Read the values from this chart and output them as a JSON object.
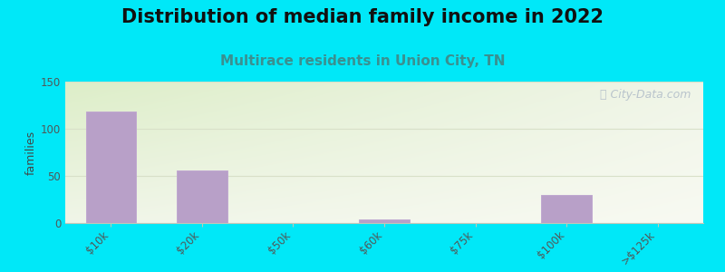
{
  "title": "Distribution of median family income in 2022",
  "subtitle": "Multirace residents in Union City, TN",
  "categories": [
    "$10k",
    "$20k",
    "$50k",
    "$60k",
    "$75k",
    "$100k",
    ">$125k"
  ],
  "values": [
    118,
    56,
    0,
    4,
    0,
    30,
    0
  ],
  "bar_color": "#b8a0c8",
  "bar_edge_color": "#c0a8d0",
  "ylabel": "families",
  "ylim": [
    0,
    150
  ],
  "yticks": [
    0,
    50,
    100,
    150
  ],
  "background_outer": "#00e8f8",
  "background_plot_topleft": "#ddeec8",
  "background_plot_right": "#f0f5e8",
  "background_plot_bottom": "#f8faf2",
  "title_fontsize": 15,
  "subtitle_fontsize": 11,
  "subtitle_color": "#3a9090",
  "watermark": " City-Data.com",
  "watermark_color": "#b0bcc8",
  "grid_color": "#d8e0c8",
  "tick_label_color": "#505858",
  "tick_label_fontsize": 8.5,
  "ylabel_fontsize": 9,
  "ylabel_color": "#404848"
}
